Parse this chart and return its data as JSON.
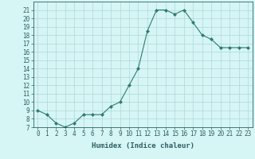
{
  "x": [
    0,
    1,
    2,
    3,
    4,
    5,
    6,
    7,
    8,
    9,
    10,
    11,
    12,
    13,
    14,
    15,
    16,
    17,
    18,
    19,
    20,
    21,
    22,
    23
  ],
  "y": [
    9,
    8.5,
    7.5,
    7,
    7.5,
    8.5,
    8.5,
    8.5,
    9.5,
    10,
    12,
    14,
    18.5,
    21,
    21,
    20.5,
    21,
    19.5,
    18,
    17.5,
    16.5,
    16.5,
    16.5,
    16.5
  ],
  "line_color": "#2e7d6e",
  "marker": "D",
  "marker_size": 2,
  "bg_color": "#d6f5f5",
  "grid_color": "#b0d8d8",
  "xlabel": "Humidex (Indice chaleur)",
  "ylim": [
    7,
    22
  ],
  "xlim": [
    -0.5,
    23.5
  ],
  "yticks": [
    7,
    8,
    9,
    10,
    11,
    12,
    13,
    14,
    15,
    16,
    17,
    18,
    19,
    20,
    21
  ],
  "xticks": [
    0,
    1,
    2,
    3,
    4,
    5,
    6,
    7,
    8,
    9,
    10,
    11,
    12,
    13,
    14,
    15,
    16,
    17,
    18,
    19,
    20,
    21,
    22,
    23
  ],
  "tick_color": "#2e6060",
  "label_fontsize": 5.5,
  "axis_fontsize": 6.5,
  "linewidth": 0.8
}
